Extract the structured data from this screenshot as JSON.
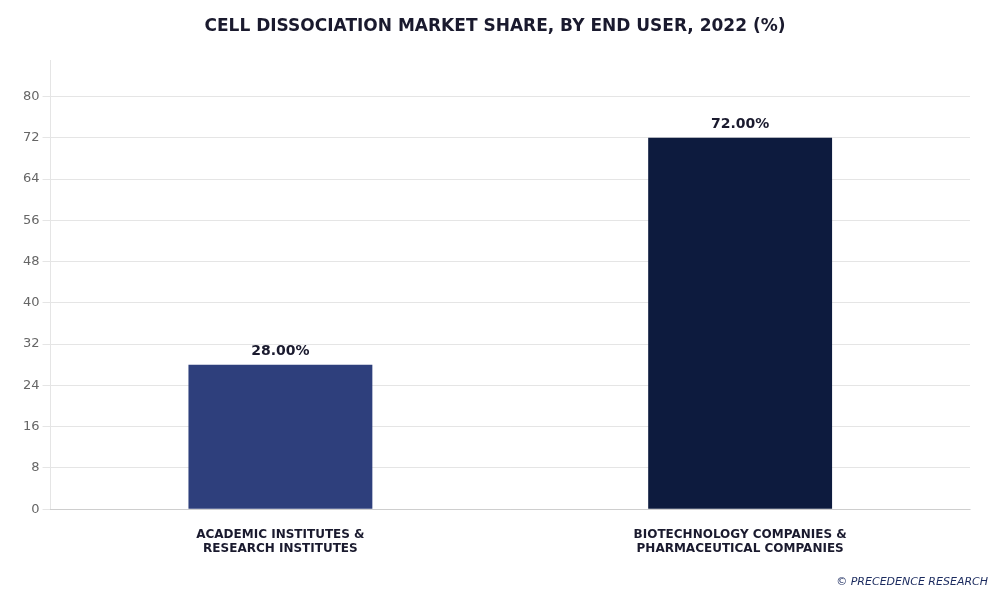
{
  "chart_data": {
    "type": "bar",
    "title": "CELL DISSOCIATION MARKET SHARE, BY END USER, 2022 (%)",
    "categories": [
      "ACADEMIC INSTITUTES &\nRESEARCH INSTITUTES",
      "BIOTECHNOLOGY COMPANIES &\nPHARMACEUTICAL COMPANIES"
    ],
    "values": [
      28.0,
      72.0
    ],
    "value_labels": [
      "28.00%",
      "72.00%"
    ],
    "data_labels": true,
    "colors": [
      "#2e3f7c",
      "#0d1b3e"
    ],
    "ylim": [
      0,
      87
    ],
    "yticks": [
      0,
      8,
      16,
      24,
      32,
      40,
      48,
      56,
      64,
      72,
      80
    ],
    "grid": true,
    "annotations": [
      "© PRECEDENCE RESEARCH"
    ]
  }
}
